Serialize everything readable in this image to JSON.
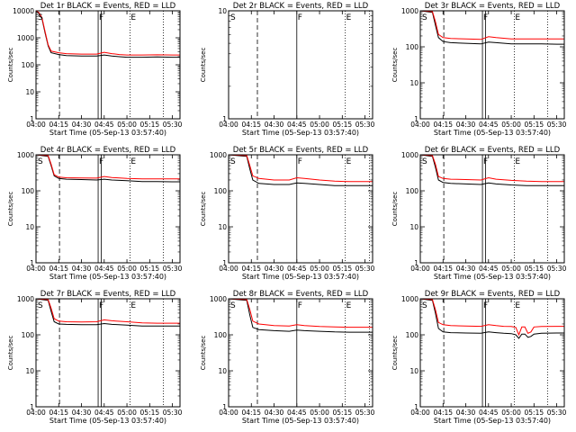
{
  "panel_common": {
    "x_tick_labels": [
      "04:00",
      "04:15",
      "04:30",
      "04:45",
      "05:00",
      "05:15",
      "05:30"
    ],
    "xlabel": "Start Time (05-Sep-13 03:57:40)",
    "ylabel": "Counts/sec",
    "marker_S": "S",
    "marker_F": "F",
    "marker_E": "E"
  },
  "chart_data": [
    {
      "type": "line",
      "title": "Det 1r BLACK = Events, RED = LLD",
      "x_unit": "minutes after 04:00",
      "xlim": [
        0,
        95
      ],
      "ylim": [
        1,
        10000
      ],
      "y_scale": "log",
      "y_tick_labels": [
        "1",
        "10",
        "100",
        "1000",
        "10000"
      ],
      "markers": {
        "dashed": 15.5,
        "solid": [
          41,
          43
        ],
        "dotted": [
          62,
          84
        ]
      },
      "series": [
        {
          "color": "#000000",
          "x": [
            0,
            2,
            4,
            6,
            8,
            10,
            15,
            20,
            30,
            40,
            45,
            50,
            55,
            60,
            70,
            80,
            90,
            95
          ],
          "y": [
            10000,
            8000,
            5000,
            1500,
            500,
            280,
            240,
            220,
            210,
            210,
            230,
            210,
            200,
            190,
            190,
            195,
            190,
            190
          ]
        },
        {
          "color": "#ff0000",
          "x": [
            0,
            2,
            4,
            6,
            8,
            10,
            15,
            20,
            30,
            40,
            45,
            50,
            55,
            60,
            70,
            80,
            90,
            95
          ],
          "y": [
            10000,
            8500,
            5500,
            1700,
            550,
            320,
            280,
            260,
            250,
            250,
            290,
            260,
            240,
            230,
            230,
            235,
            230,
            230
          ]
        }
      ]
    },
    {
      "type": "line",
      "title": "Det 2r BLACK = Events, RED = LLD",
      "x_unit": "minutes after 04:00",
      "xlim": [
        0,
        95
      ],
      "ylim": [
        1,
        10
      ],
      "y_scale": "log",
      "y_tick_labels": [
        "1",
        "10"
      ],
      "markers": {
        "dashed": 19,
        "solid": [
          45
        ],
        "dotted": [
          77,
          93
        ]
      },
      "series": []
    },
    {
      "type": "line",
      "title": "Det 3r BLACK = Events, RED = LLD",
      "x_unit": "minutes after 04:00",
      "xlim": [
        0,
        95
      ],
      "ylim": [
        1,
        1000
      ],
      "y_scale": "log",
      "y_tick_labels": [
        "1",
        "10",
        "100",
        "1000"
      ],
      "markers": {
        "dashed": 15.5,
        "solid": [
          41,
          43
        ],
        "dotted": [
          62,
          84
        ]
      },
      "series": [
        {
          "color": "#000000",
          "x": [
            0,
            8,
            10,
            12,
            15,
            20,
            30,
            40,
            45,
            50,
            60,
            70,
            80,
            90,
            95
          ],
          "y": [
            1000,
            900,
            400,
            180,
            140,
            130,
            125,
            120,
            135,
            130,
            120,
            120,
            120,
            118,
            118
          ]
        },
        {
          "color": "#ff0000",
          "x": [
            0,
            8,
            10,
            12,
            15,
            20,
            30,
            40,
            45,
            50,
            60,
            70,
            80,
            90,
            95
          ],
          "y": [
            1000,
            950,
            500,
            220,
            180,
            170,
            165,
            160,
            190,
            180,
            165,
            165,
            165,
            165,
            165
          ]
        }
      ]
    },
    {
      "type": "line",
      "title": "Det 4r BLACK = Events, RED = LLD",
      "x_unit": "minutes after 04:00",
      "xlim": [
        0,
        95
      ],
      "ylim": [
        1,
        1000
      ],
      "y_scale": "log",
      "y_tick_labels": [
        "1",
        "10",
        "100",
        "1000"
      ],
      "markers": {
        "dashed": 15.5,
        "solid": [
          41,
          43
        ],
        "dotted": [
          62,
          84
        ]
      },
      "series": [
        {
          "color": "#000000",
          "x": [
            0,
            8,
            10,
            12,
            15,
            20,
            30,
            40,
            45,
            50,
            60,
            70,
            80,
            90,
            95
          ],
          "y": [
            1000,
            900,
            500,
            260,
            220,
            210,
            205,
            200,
            210,
            200,
            190,
            180,
            180,
            178,
            178
          ]
        },
        {
          "color": "#ff0000",
          "x": [
            0,
            8,
            10,
            12,
            15,
            20,
            30,
            40,
            45,
            50,
            60,
            70,
            80,
            90,
            95
          ],
          "y": [
            1000,
            950,
            550,
            280,
            240,
            230,
            228,
            225,
            250,
            235,
            220,
            215,
            215,
            215,
            215
          ]
        }
      ]
    },
    {
      "type": "line",
      "title": "Det 5r BLACK = Events, RED = LLD",
      "x_unit": "minutes after 04:00",
      "xlim": [
        0,
        95
      ],
      "ylim": [
        1,
        1000
      ],
      "y_scale": "log",
      "y_tick_labels": [
        "1",
        "10",
        "100",
        "1000"
      ],
      "markers": {
        "dashed": 19,
        "solid": [
          45
        ],
        "dotted": [
          77,
          93
        ]
      },
      "series": [
        {
          "color": "#000000",
          "x": [
            0,
            12,
            14,
            16,
            20,
            30,
            40,
            45,
            50,
            60,
            70,
            80,
            90,
            95
          ],
          "y": [
            1000,
            900,
            400,
            200,
            160,
            150,
            150,
            165,
            160,
            150,
            140,
            140,
            140,
            140
          ]
        },
        {
          "color": "#ff0000",
          "x": [
            0,
            12,
            14,
            16,
            20,
            30,
            40,
            45,
            50,
            60,
            70,
            80,
            90,
            95
          ],
          "y": [
            1000,
            950,
            500,
            260,
            220,
            200,
            200,
            230,
            220,
            200,
            185,
            180,
            180,
            180
          ]
        }
      ]
    },
    {
      "type": "line",
      "title": "Det 6r BLACK = Events, RED = LLD",
      "x_unit": "minutes after 04:00",
      "xlim": [
        0,
        95
      ],
      "ylim": [
        1,
        1000
      ],
      "y_scale": "log",
      "y_tick_labels": [
        "1",
        "10",
        "100",
        "1000"
      ],
      "markers": {
        "dashed": 15.5,
        "solid": [
          41,
          43
        ],
        "dotted": [
          62,
          84
        ]
      },
      "series": [
        {
          "color": "#000000",
          "x": [
            0,
            8,
            10,
            12,
            15,
            20,
            30,
            40,
            45,
            50,
            60,
            70,
            80,
            90,
            95
          ],
          "y": [
            1000,
            900,
            450,
            200,
            170,
            160,
            155,
            150,
            165,
            155,
            145,
            140,
            140,
            140,
            140
          ]
        },
        {
          "color": "#ff0000",
          "x": [
            0,
            8,
            10,
            12,
            15,
            20,
            30,
            40,
            45,
            50,
            60,
            70,
            80,
            90,
            95
          ],
          "y": [
            1000,
            950,
            550,
            250,
            220,
            210,
            205,
            200,
            230,
            210,
            195,
            185,
            180,
            180,
            180
          ]
        }
      ]
    },
    {
      "type": "line",
      "title": "Det 7r BLACK = Events, RED = LLD",
      "x_unit": "minutes after 04:00",
      "xlim": [
        0,
        95
      ],
      "ylim": [
        1,
        1000
      ],
      "y_scale": "log",
      "y_tick_labels": [
        "1",
        "10",
        "100",
        "1000"
      ],
      "markers": {
        "dashed": 15.5,
        "solid": [
          41,
          43
        ],
        "dotted": [
          62,
          84
        ]
      },
      "series": [
        {
          "color": "#000000",
          "x": [
            0,
            8,
            10,
            12,
            15,
            20,
            30,
            40,
            45,
            50,
            60,
            70,
            80,
            90,
            95
          ],
          "y": [
            1000,
            900,
            450,
            230,
            200,
            195,
            190,
            190,
            205,
            195,
            185,
            175,
            175,
            175,
            175
          ]
        },
        {
          "color": "#ff0000",
          "x": [
            0,
            8,
            10,
            12,
            15,
            20,
            30,
            40,
            45,
            50,
            60,
            70,
            80,
            90,
            95
          ],
          "y": [
            1000,
            950,
            550,
            280,
            240,
            230,
            228,
            230,
            260,
            245,
            230,
            215,
            210,
            210,
            210
          ]
        }
      ]
    },
    {
      "type": "line",
      "title": "Det 8r BLACK = Events, RED = LLD",
      "x_unit": "minutes after 04:00",
      "xlim": [
        0,
        95
      ],
      "ylim": [
        1,
        1000
      ],
      "y_scale": "log",
      "y_tick_labels": [
        "1",
        "10",
        "100",
        "1000"
      ],
      "markers": {
        "dashed": 19,
        "solid": [
          45
        ],
        "dotted": [
          77,
          93
        ]
      },
      "series": [
        {
          "color": "#000000",
          "x": [
            0,
            12,
            14,
            16,
            20,
            30,
            40,
            45,
            50,
            60,
            70,
            80,
            90,
            95
          ],
          "y": [
            1000,
            900,
            350,
            160,
            140,
            130,
            125,
            135,
            130,
            125,
            120,
            118,
            118,
            118
          ]
        },
        {
          "color": "#ff0000",
          "x": [
            0,
            12,
            14,
            16,
            20,
            30,
            40,
            45,
            50,
            60,
            70,
            80,
            90,
            95
          ],
          "y": [
            1000,
            950,
            500,
            240,
            200,
            180,
            175,
            190,
            180,
            170,
            165,
            162,
            162,
            162
          ]
        }
      ]
    },
    {
      "type": "line",
      "title": "Det 9r BLACK = Events, RED = LLD",
      "x_unit": "minutes after 04:00",
      "xlim": [
        0,
        95
      ],
      "ylim": [
        1,
        1000
      ],
      "y_scale": "log",
      "y_tick_labels": [
        "1",
        "10",
        "100",
        "1000"
      ],
      "markers": {
        "dashed": 15.5,
        "solid": [
          41,
          43
        ],
        "dotted": [
          62,
          84
        ]
      },
      "series": [
        {
          "color": "#000000",
          "x": [
            0,
            8,
            10,
            12,
            15,
            20,
            30,
            40,
            45,
            50,
            55,
            60,
            63,
            65,
            67,
            69,
            71,
            73,
            75,
            80,
            90,
            95
          ],
          "y": [
            1000,
            900,
            400,
            150,
            120,
            115,
            112,
            110,
            120,
            115,
            110,
            108,
            100,
            80,
            105,
            105,
            85,
            90,
            105,
            110,
            112,
            112
          ]
        },
        {
          "color": "#ff0000",
          "x": [
            0,
            8,
            10,
            12,
            15,
            20,
            30,
            40,
            45,
            50,
            55,
            60,
            63,
            65,
            67,
            69,
            71,
            73,
            75,
            80,
            90,
            95
          ],
          "y": [
            1000,
            950,
            500,
            220,
            190,
            180,
            175,
            172,
            190,
            180,
            172,
            170,
            160,
            100,
            165,
            165,
            110,
            120,
            165,
            170,
            172,
            172
          ]
        }
      ]
    }
  ]
}
